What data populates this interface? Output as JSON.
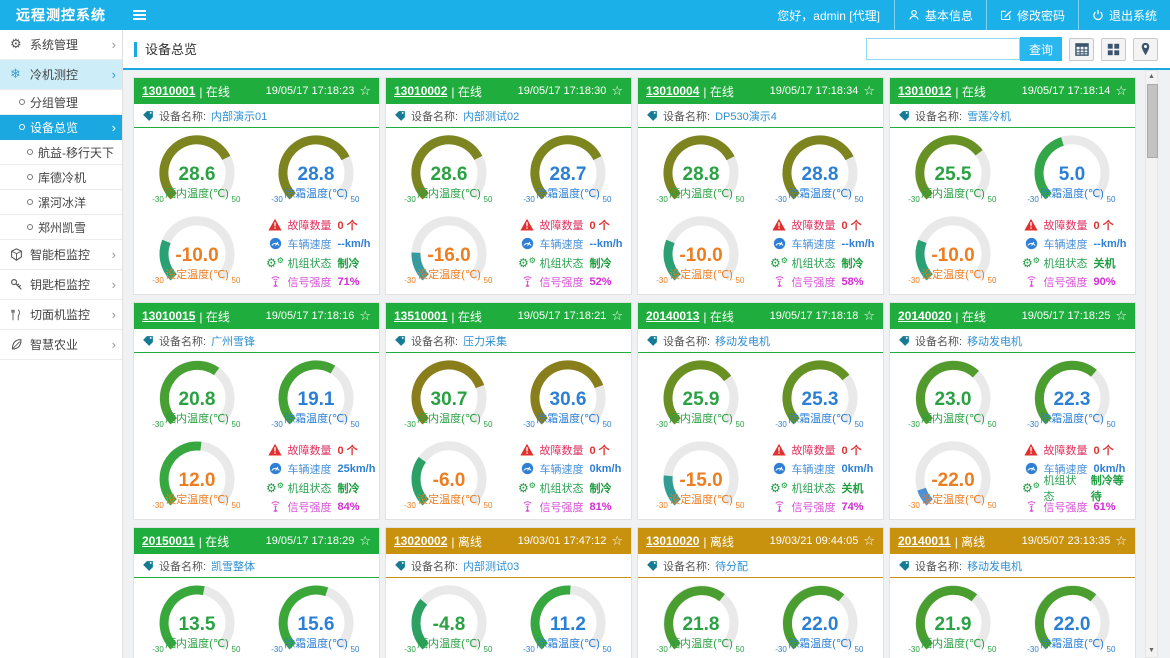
{
  "app": {
    "title": "远程测控系统"
  },
  "header": {
    "greeting": "您好，admin [代理]",
    "menu": [
      {
        "icon": "user-icon",
        "label": "基本信息"
      },
      {
        "icon": "edit-icon",
        "label": "修改密码"
      },
      {
        "icon": "power-icon",
        "label": "退出系统"
      }
    ]
  },
  "sidebar": {
    "items": [
      {
        "icon": "gear-icon",
        "label": "系统管理",
        "level": 1,
        "chevron": true
      },
      {
        "icon": "snowflake-icon",
        "label": "冷机测控",
        "level": 1,
        "chevron": true,
        "state": "open"
      },
      {
        "label": "分组管理",
        "level": 2
      },
      {
        "label": "设备总览",
        "level": 2,
        "chevron": true,
        "state": "active"
      },
      {
        "label": "航益-移行天下",
        "level": 3
      },
      {
        "label": "库德冷机",
        "level": 3
      },
      {
        "label": "漯河冰洋",
        "level": 3
      },
      {
        "label": "郑州凯雪",
        "level": 3
      },
      {
        "icon": "cabinet-icon",
        "label": "智能柜监控",
        "level": 1,
        "chevron": true
      },
      {
        "icon": "key-icon",
        "label": "钥匙柜监控",
        "level": 1,
        "chevron": true
      },
      {
        "icon": "slicer-icon",
        "label": "切面机监控",
        "level": 1,
        "chevron": true
      },
      {
        "icon": "leaf-icon",
        "label": "智慧农业",
        "level": 1,
        "chevron": true
      }
    ]
  },
  "toolbar": {
    "title": "设备总览",
    "search_value": "",
    "search_button": "查询",
    "views": [
      {
        "icon": "table-view-icon"
      },
      {
        "icon": "grid-view-icon"
      },
      {
        "icon": "map-view-icon"
      }
    ]
  },
  "card_labels": {
    "name_label": "设备名称:",
    "gauge_labels": [
      "厢内温度(℃)",
      "除霜温度(℃)",
      "设定温度(℃)"
    ],
    "gauge_min": "-30",
    "gauge_max": "50",
    "info_labels": [
      "故障数量",
      "车辆速度",
      "机组状态",
      "信号强度"
    ],
    "info_icons": [
      "fault-warning-icon",
      "vehicle-speed-icon",
      "unit-status-icon",
      "signal-strength-icon"
    ],
    "star": "☆"
  },
  "colors": {
    "topbar": "#1cb0e8",
    "accent": "#1ba8e1",
    "online_header": "#1fae3d",
    "offline_header": "#c8920f",
    "gauge_value_colors": [
      "#2aa143",
      "#2b7fd4",
      "#ed7d21"
    ],
    "gauge_track": "#e9e9e9",
    "info_label_colors": [
      "#e0315f",
      "#4a90d9",
      "#2ba052",
      "#d653d6"
    ],
    "info_value_colors": [
      "#e03131",
      "#2f7fd4",
      "#1e9e40",
      "#d22bd2"
    ],
    "name_value": "#2e8fd0",
    "gauge_color_scale": [
      [
        -30,
        "#5b8fd8"
      ],
      [
        -20,
        "#4a90d2"
      ],
      [
        -14,
        "#2d9f86"
      ],
      [
        -8,
        "#2aa06c"
      ],
      [
        5,
        "#33a649"
      ],
      [
        15,
        "#3aa83a"
      ],
      [
        22,
        "#4a9e30"
      ],
      [
        26,
        "#6b8f22"
      ],
      [
        31,
        "#8c7c1c"
      ]
    ]
  },
  "gauge_range": {
    "min": -30,
    "max": 50
  },
  "cards": [
    {
      "id": "13010001",
      "status": "在线",
      "online": true,
      "time": "19/05/17 17:18:23",
      "name": "内部演示01",
      "gauges": [
        "28.6",
        "28.8",
        "-10.0"
      ],
      "info": [
        "0 个",
        "--km/h",
        "制冷",
        "71%"
      ]
    },
    {
      "id": "13010002",
      "status": "在线",
      "online": true,
      "time": "19/05/17 17:18:30",
      "name": "内部测试02",
      "gauges": [
        "28.6",
        "28.7",
        "-16.0"
      ],
      "info": [
        "0 个",
        "--km/h",
        "制冷",
        "52%"
      ]
    },
    {
      "id": "13010004",
      "status": "在线",
      "online": true,
      "time": "19/05/17 17:18:34",
      "name": "DP530演示4",
      "gauges": [
        "28.8",
        "28.8",
        "-10.0"
      ],
      "info": [
        "0 个",
        "--km/h",
        "制冷",
        "58%"
      ]
    },
    {
      "id": "13010012",
      "status": "在线",
      "online": true,
      "time": "19/05/17 17:18:14",
      "name": "雪莲冷机",
      "gauges": [
        "25.5",
        "5.0",
        "-10.0"
      ],
      "info": [
        "0 个",
        "--km/h",
        "关机",
        "90%"
      ]
    },
    {
      "id": "13010015",
      "status": "在线",
      "online": true,
      "time": "19/05/17 17:18:16",
      "name": "广州雪锋",
      "gauges": [
        "20.8",
        "19.1",
        "12.0"
      ],
      "info": [
        "0 个",
        "25km/h",
        "制冷",
        "84%"
      ]
    },
    {
      "id": "13510001",
      "status": "在线",
      "online": true,
      "time": "19/05/17 17:18:21",
      "name": "压力采集",
      "gauges": [
        "30.7",
        "30.6",
        "-6.0"
      ],
      "info": [
        "0 个",
        "0km/h",
        "制冷",
        "81%"
      ]
    },
    {
      "id": "20140013",
      "status": "在线",
      "online": true,
      "time": "19/05/17 17:18:18",
      "name": "移动发电机",
      "gauges": [
        "25.9",
        "25.3",
        "-15.0"
      ],
      "info": [
        "0 个",
        "0km/h",
        "关机",
        "74%"
      ]
    },
    {
      "id": "20140020",
      "status": "在线",
      "online": true,
      "time": "19/05/17 17:18:25",
      "name": "移动发电机",
      "gauges": [
        "23.0",
        "22.3",
        "-22.0"
      ],
      "info": [
        "0 个",
        "0km/h",
        "制冷等待",
        "61%"
      ]
    },
    {
      "id": "20150011",
      "status": "在线",
      "online": true,
      "time": "19/05/17 17:18:29",
      "name": "凯雪整体",
      "gauges": [
        "13.5",
        "15.6"
      ]
    },
    {
      "id": "13020002",
      "status": "离线",
      "online": false,
      "time": "19/03/01 17:47:12",
      "name": "内部测试03",
      "gauges": [
        "-4.8",
        "11.2"
      ]
    },
    {
      "id": "13010020",
      "status": "离线",
      "online": false,
      "time": "19/03/21 09:44:05",
      "name": "待分配",
      "gauges": [
        "21.8",
        "22.0"
      ]
    },
    {
      "id": "20140011",
      "status": "离线",
      "online": false,
      "time": "19/05/07 23:13:35",
      "name": "移动发电机",
      "gauges": [
        "21.9",
        "22.0"
      ]
    }
  ],
  "scrollbar": {
    "up": "▲",
    "down": "▼"
  }
}
